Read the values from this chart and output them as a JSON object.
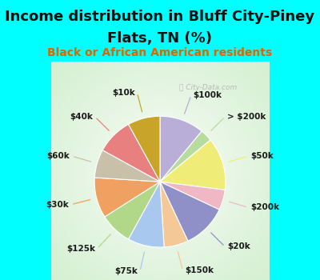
{
  "title_line1": "Income distribution in Bluff City-Piney",
  "title_line2": "Flats, TN (%)",
  "subtitle": "Black or African American residents",
  "watermark": "ⓘ City-Data.com",
  "background_cyan": "#00FFFF",
  "background_chart": "#d4ede0",
  "labels": [
    "$100k",
    "> $200k",
    "$50k",
    "$200k",
    "$20k",
    "$150k",
    "$75k",
    "$125k",
    "$30k",
    "$60k",
    "$40k",
    "$10k"
  ],
  "values": [
    11,
    3,
    13,
    5,
    11,
    6,
    9,
    8,
    10,
    7,
    9,
    8
  ],
  "colors": [
    "#b8aed8",
    "#b8dca0",
    "#f0ec78",
    "#f0b8c4",
    "#9090c8",
    "#f5c898",
    "#a8c8f0",
    "#b0d888",
    "#f0a060",
    "#c8c0a8",
    "#e88080",
    "#c8a428"
  ],
  "title_fontsize": 13,
  "subtitle_fontsize": 10,
  "title_color": "#111111",
  "subtitle_color": "#dd6600",
  "label_fontsize": 7.5
}
